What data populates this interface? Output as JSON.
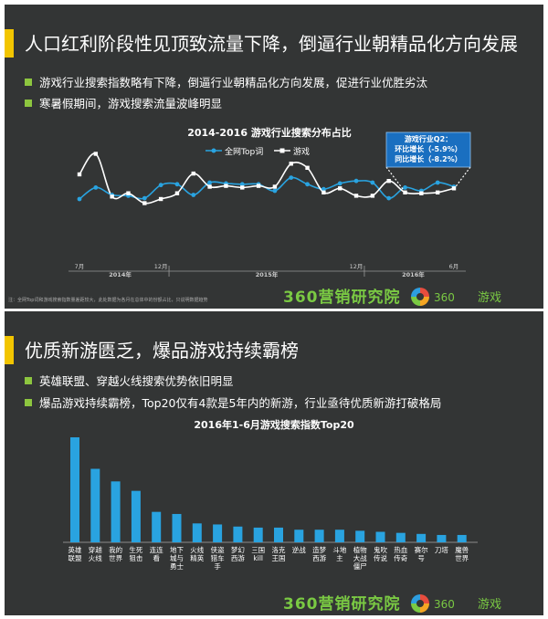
{
  "slide1": {
    "title": "人口红利阶段性见顶致流量下降，倒逼行业朝精品化方向发展",
    "bullets": [
      "游戏行业搜索指数略有下降，倒逼行业朝精品化方向发展，促进行业优胜劣汰",
      "寒暑假期间，游戏搜索流量波峰明显"
    ],
    "callout": [
      "游戏行业Q2：",
      "环比增长（-5.9%）",
      "同比增长（-8.2%）"
    ],
    "footnote": "注：全网Top词和游戏搜索指数量差距较大，此处数据为各月在总体中的份额占比，只说明数据趋势",
    "logo_main": "360营销研究院",
    "logo_mid": "360",
    "logo_game": "游戏"
  },
  "slide2": {
    "title": "优质新游匮乏，爆品游戏持续霸榜",
    "bullets": [
      "英雄联盟、穿越火线搜索优势依旧明显",
      "爆品游戏持续霸榜，Top20仅有4款是5年内的新游，行业亟待优质新游打破格局"
    ],
    "logo_main": "360营销研究院",
    "logo_mid": "360",
    "logo_game": "游戏"
  },
  "colors": {
    "accent": "#f2c500",
    "bullet": "#8dc63f",
    "series1": "#29a3e0",
    "series2": "#ffffff",
    "bars": "#29a3e0",
    "callout": "#1a6fc0",
    "background": "#333535"
  },
  "chart_data": [
    {
      "type": "line",
      "title": "2014-2016 游戏行业搜索分布占比",
      "x": [
        "2014-07",
        "2014-08",
        "2014-09",
        "2014-10",
        "2014-11",
        "2014-12",
        "2015-01",
        "2015-02",
        "2015-03",
        "2015-04",
        "2015-05",
        "2015-06",
        "2015-07",
        "2015-08",
        "2015-09",
        "2015-10",
        "2015-11",
        "2015-12",
        "2016-01",
        "2016-02",
        "2016-03",
        "2016-04",
        "2016-05",
        "2016-06"
      ],
      "x_tick_labels": {
        "2014-07": "7月",
        "2014-12": "12月",
        "2015-12": "12月",
        "2016-06": "6月"
      },
      "year_labels": [
        "2014年",
        "2015年",
        "2016年"
      ],
      "series": [
        {
          "name": "全网Top词",
          "values": [
            30,
            44,
            35,
            34,
            31,
            47,
            48,
            35,
            50,
            49,
            48,
            48,
            40,
            56,
            48,
            42,
            49,
            52,
            50,
            31,
            44,
            40,
            50,
            45
          ]
        },
        {
          "name": "游戏",
          "values": [
            60,
            85,
            33,
            37,
            25,
            30,
            37,
            61,
            45,
            46,
            44,
            46,
            45,
            73,
            68,
            38,
            43,
            34,
            34,
            52,
            38,
            37,
            38,
            43
          ]
        }
      ],
      "ylim": [
        0,
        100
      ],
      "grid": false,
      "legend": "top"
    },
    {
      "type": "bar",
      "title": "2016年1-6月游戏搜索指数Top20",
      "categories": [
        "英雄联盟",
        "穿越火线",
        "我的世界",
        "生死狙击",
        "连连看",
        "地下城与勇士",
        "火线精英",
        "侠盗猎车手",
        "梦幻西游",
        "三国kill",
        "洛克王国",
        "逆战",
        "造梦西游",
        "斗地主",
        "植物大战僵尸",
        "鬼吹传说",
        "热血传奇",
        "赛尔号",
        "刀塔",
        "魔兽世界"
      ],
      "category_labels_display": [
        "英雄\n联盟",
        "穿越\n火线",
        "我的\n世界",
        "生死\n狙击",
        "连连\n看",
        "地下\n城与\n勇士",
        "火线\n精英",
        "侠盗\n猎车\n手",
        "梦幻\n西游",
        "三国\nkill",
        "洛克\n王国",
        "逆战",
        "造梦\n西游",
        "斗地\n主",
        "植物\n大战\n僵尸",
        "鬼吹\n传说",
        "热血\n传奇",
        "赛尔\n号",
        "刀塔",
        "魔兽\n世界"
      ],
      "values": [
        100,
        70,
        58,
        49,
        29,
        27,
        18,
        17,
        15,
        14,
        14,
        12,
        12,
        12,
        11,
        10,
        9,
        8,
        7,
        7
      ],
      "ylim": [
        0,
        100
      ],
      "grid": false
    }
  ]
}
